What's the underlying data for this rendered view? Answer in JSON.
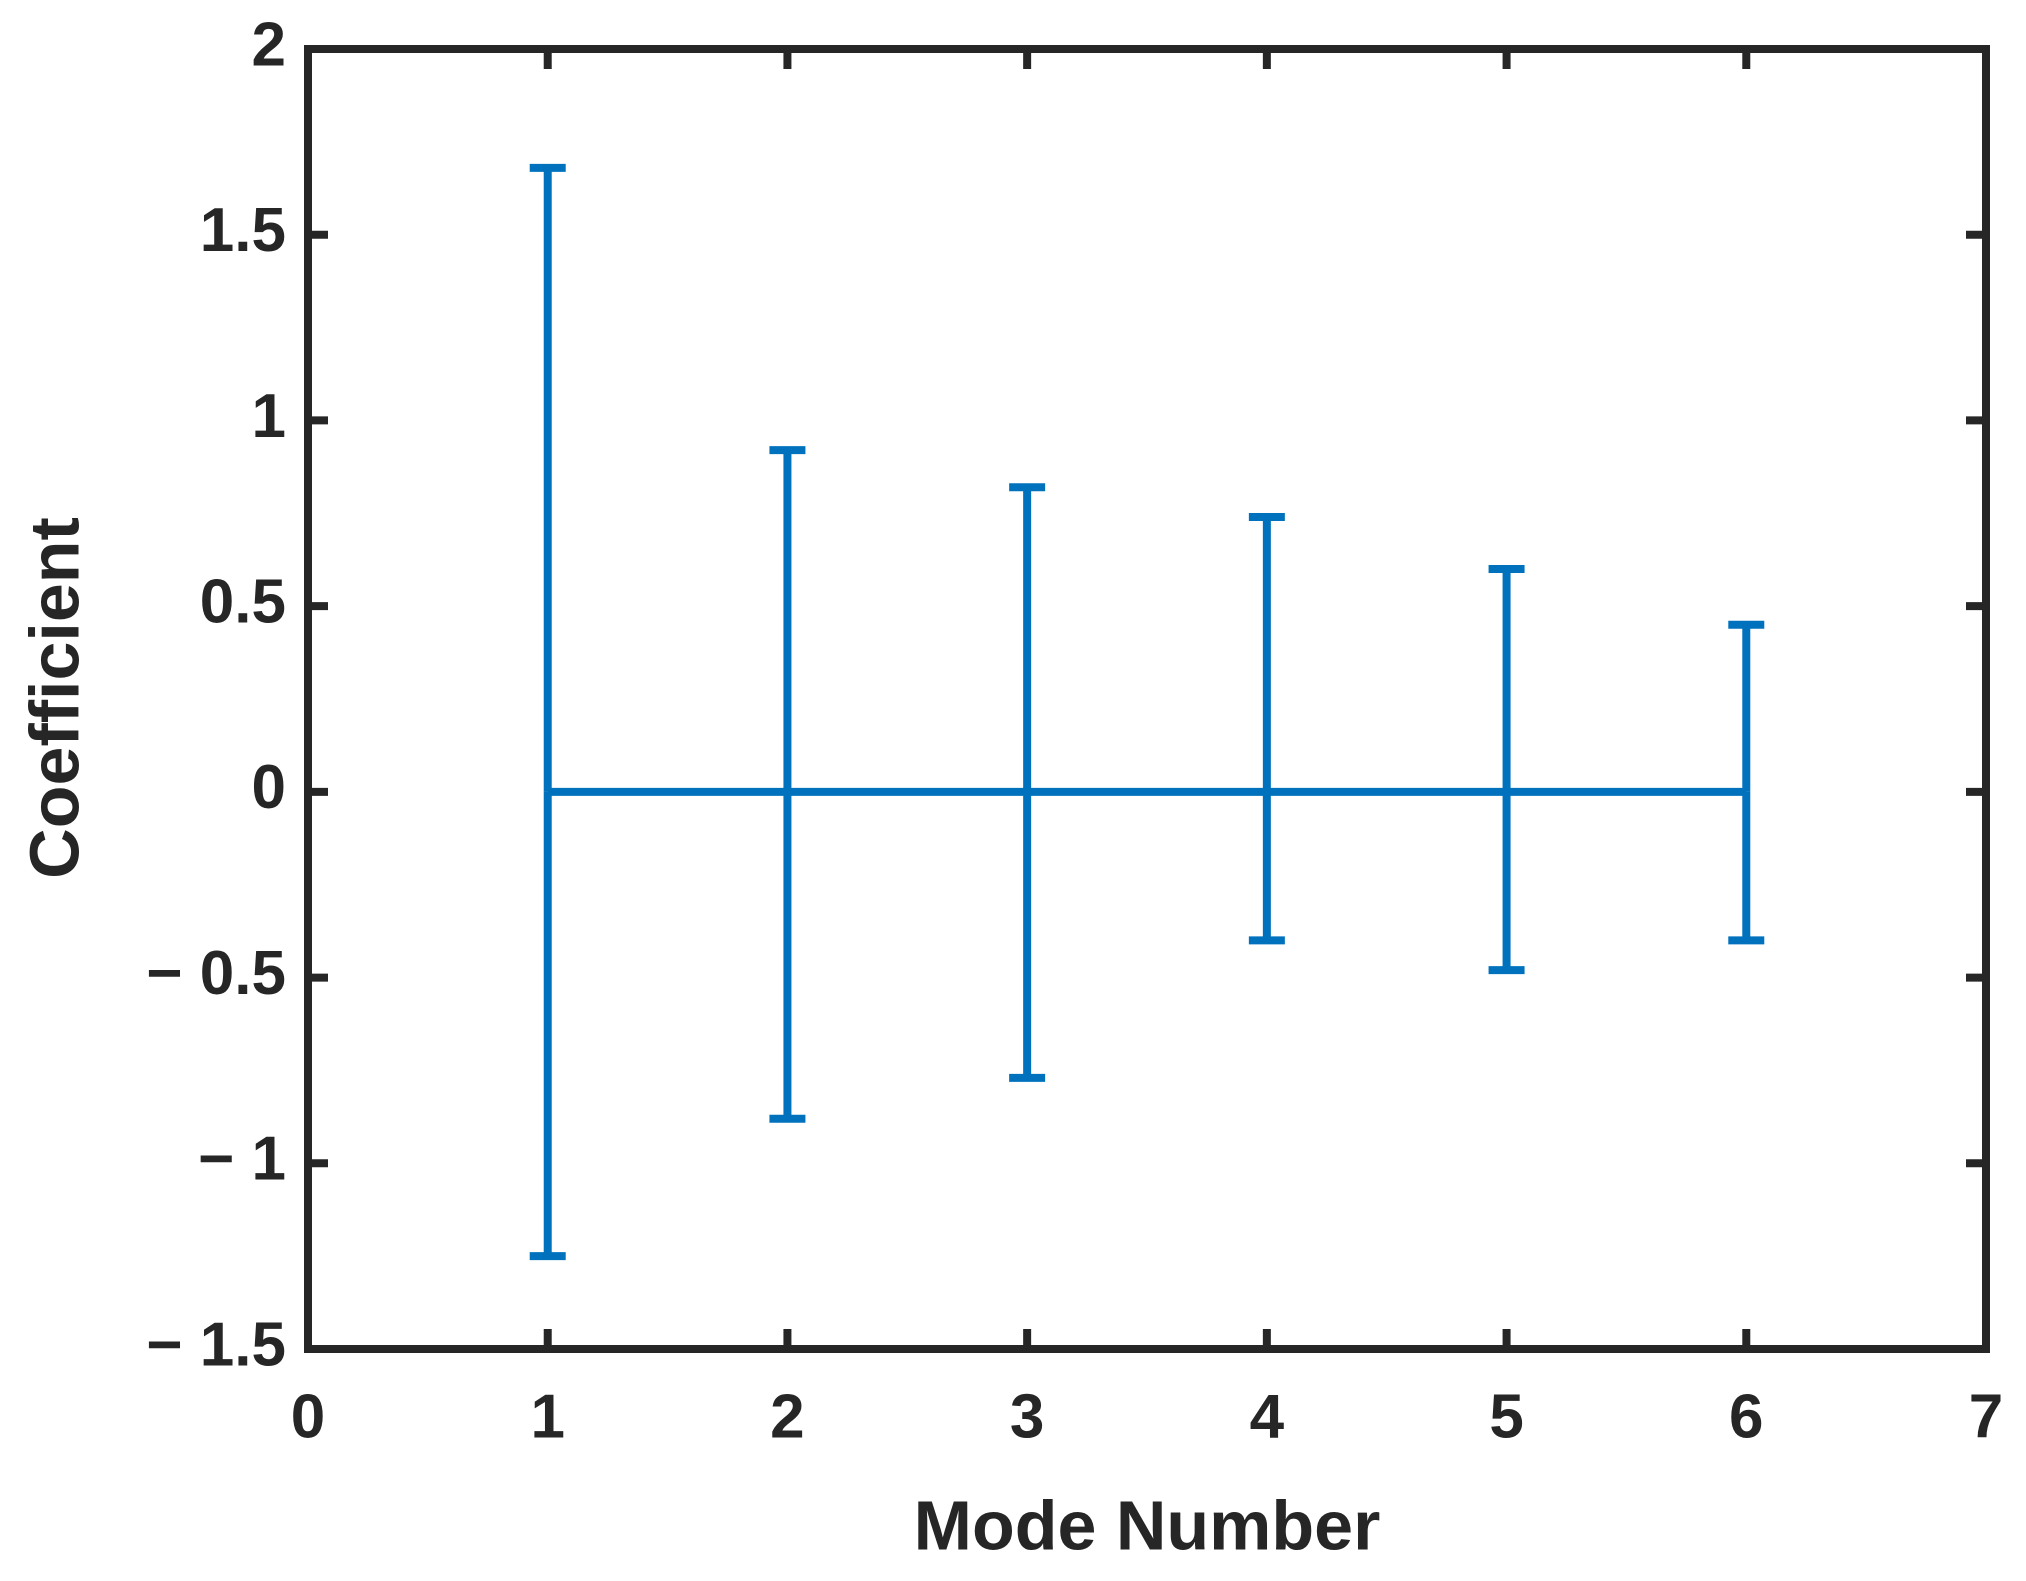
{
  "chart_data": {
    "type": "errorbar",
    "xlabel": "Mode Number",
    "ylabel": "Coefficient",
    "x": [
      1,
      2,
      3,
      4,
      5,
      6
    ],
    "series": [
      {
        "color": "#0072bd",
        "values": [
          0,
          0,
          0,
          0,
          0,
          0
        ],
        "err_upper": [
          1.68,
          0.92,
          0.82,
          0.74,
          0.6,
          0.45
        ],
        "err_lower": [
          1.25,
          0.88,
          0.77,
          0.4,
          0.48,
          0.4
        ]
      }
    ],
    "xlim": [
      0,
      7
    ],
    "xticks": [
      0,
      1,
      2,
      3,
      4,
      5,
      6,
      7
    ],
    "ylim": [
      -1.5,
      2
    ],
    "yticks": [
      {
        "value": -1.5,
        "label": "− 1.5"
      },
      {
        "value": -1,
        "label": "− 1"
      },
      {
        "value": -0.5,
        "label": "− 0.5"
      },
      0,
      0.5,
      1,
      1.5,
      2
    ],
    "grid": false
  }
}
